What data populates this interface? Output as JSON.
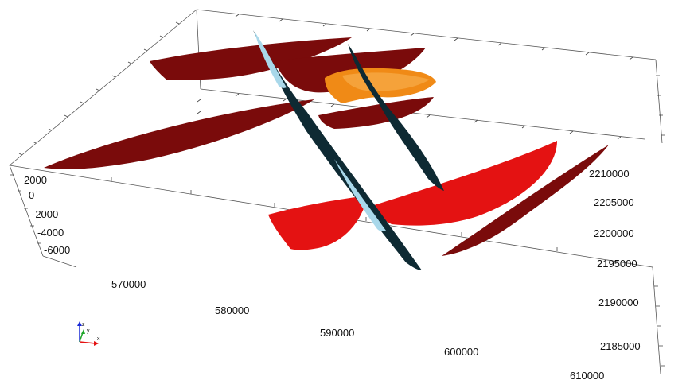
{
  "scene": {
    "z_axis": {
      "tick_labels": [
        "2000",
        "0",
        "-2000",
        "-4000",
        "-6000"
      ]
    },
    "x_axis": {
      "tick_labels": [
        "570000",
        "580000",
        "590000",
        "600000",
        "610000"
      ]
    },
    "y_axis": {
      "tick_labels": [
        "2210000",
        "2205000",
        "2200000",
        "2195000",
        "2190000",
        "2185000"
      ]
    },
    "orientation_triad": {
      "labels": [
        "z",
        "y",
        "x"
      ]
    },
    "colors": {
      "background": "#ffffff",
      "dark_red": "#7a0b0b",
      "red": "#e41212",
      "orange": "#f08a16",
      "dark_teal": "#0e2a33",
      "light_blue": "#a9d8ea"
    }
  }
}
